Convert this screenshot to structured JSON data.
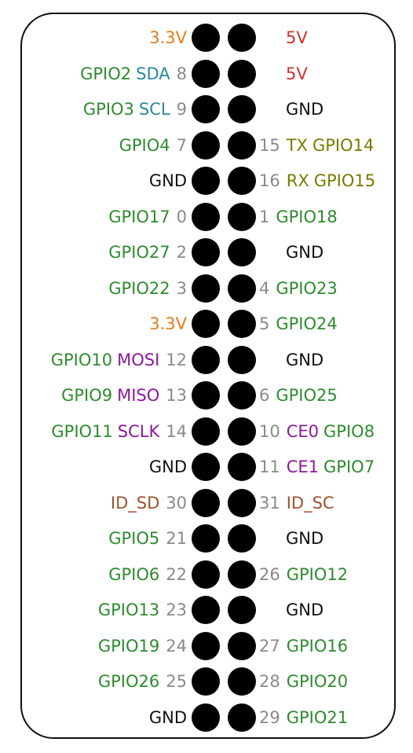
{
  "colors": {
    "power33": "#e57c1a",
    "power5": "#d32f2f",
    "gnd": "#111111",
    "gpio": "#2e8b2e",
    "i2c": "#2a8a9a",
    "uart": "#7a7a00",
    "spi": "#8b1a9c",
    "id": "#a0522d",
    "wpi": "#8a8a8a"
  },
  "rows": [
    {
      "left": {
        "name": "3.3V",
        "type": "power33",
        "func": "",
        "functype": "",
        "wpi": ""
      },
      "right": {
        "name": "5V",
        "type": "power5",
        "func": "",
        "functype": "",
        "wpi": ""
      }
    },
    {
      "left": {
        "name": "GPIO2",
        "type": "gpio",
        "func": "SDA",
        "functype": "i2c",
        "wpi": "8"
      },
      "right": {
        "name": "5V",
        "type": "power5",
        "func": "",
        "functype": "",
        "wpi": ""
      }
    },
    {
      "left": {
        "name": "GPIO3",
        "type": "gpio",
        "func": "SCL",
        "functype": "i2c",
        "wpi": "9"
      },
      "right": {
        "name": "GND",
        "type": "gnd",
        "func": "",
        "functype": "",
        "wpi": ""
      }
    },
    {
      "left": {
        "name": "GPIO4",
        "type": "gpio",
        "func": "",
        "functype": "",
        "wpi": "7"
      },
      "right": {
        "name": "GPIO14",
        "type": "uart",
        "func": "TX",
        "functype": "uart",
        "wpi": "15"
      }
    },
    {
      "left": {
        "name": "GND",
        "type": "gnd",
        "func": "",
        "functype": "",
        "wpi": ""
      },
      "right": {
        "name": "GPIO15",
        "type": "uart",
        "func": "RX",
        "functype": "uart",
        "wpi": "16"
      }
    },
    {
      "left": {
        "name": "GPIO17",
        "type": "gpio",
        "func": "",
        "functype": "",
        "wpi": "0"
      },
      "right": {
        "name": "GPIO18",
        "type": "gpio",
        "func": "",
        "functype": "",
        "wpi": "1"
      }
    },
    {
      "left": {
        "name": "GPIO27",
        "type": "gpio",
        "func": "",
        "functype": "",
        "wpi": "2"
      },
      "right": {
        "name": "GND",
        "type": "gnd",
        "func": "",
        "functype": "",
        "wpi": ""
      }
    },
    {
      "left": {
        "name": "GPIO22",
        "type": "gpio",
        "func": "",
        "functype": "",
        "wpi": "3"
      },
      "right": {
        "name": "GPIO23",
        "type": "gpio",
        "func": "",
        "functype": "",
        "wpi": "4"
      }
    },
    {
      "left": {
        "name": "3.3V",
        "type": "power33",
        "func": "",
        "functype": "",
        "wpi": ""
      },
      "right": {
        "name": "GPIO24",
        "type": "gpio",
        "func": "",
        "functype": "",
        "wpi": "5"
      }
    },
    {
      "left": {
        "name": "GPIO10",
        "type": "gpio",
        "func": "MOSI",
        "functype": "spi",
        "wpi": "12"
      },
      "right": {
        "name": "GND",
        "type": "gnd",
        "func": "",
        "functype": "",
        "wpi": ""
      }
    },
    {
      "left": {
        "name": "GPIO9",
        "type": "gpio",
        "func": "MISO",
        "functype": "spi",
        "wpi": "13"
      },
      "right": {
        "name": "GPIO25",
        "type": "gpio",
        "func": "",
        "functype": "",
        "wpi": "6"
      }
    },
    {
      "left": {
        "name": "GPIO11",
        "type": "gpio",
        "func": "SCLK",
        "functype": "spi",
        "wpi": "14"
      },
      "right": {
        "name": "GPIO8",
        "type": "gpio",
        "func": "CE0",
        "functype": "spi",
        "wpi": "10"
      }
    },
    {
      "left": {
        "name": "GND",
        "type": "gnd",
        "func": "",
        "functype": "",
        "wpi": ""
      },
      "right": {
        "name": "GPIO7",
        "type": "gpio",
        "func": "CE1",
        "functype": "spi",
        "wpi": "11"
      }
    },
    {
      "left": {
        "name": "ID_SD",
        "type": "id",
        "func": "",
        "functype": "",
        "wpi": "30"
      },
      "right": {
        "name": "ID_SC",
        "type": "id",
        "func": "",
        "functype": "",
        "wpi": "31"
      }
    },
    {
      "left": {
        "name": "GPIO5",
        "type": "gpio",
        "func": "",
        "functype": "",
        "wpi": "21"
      },
      "right": {
        "name": "GND",
        "type": "gnd",
        "func": "",
        "functype": "",
        "wpi": ""
      }
    },
    {
      "left": {
        "name": "GPIO6",
        "type": "gpio",
        "func": "",
        "functype": "",
        "wpi": "22"
      },
      "right": {
        "name": "GPIO12",
        "type": "gpio",
        "func": "",
        "functype": "",
        "wpi": "26"
      }
    },
    {
      "left": {
        "name": "GPIO13",
        "type": "gpio",
        "func": "",
        "functype": "",
        "wpi": "23"
      },
      "right": {
        "name": "GND",
        "type": "gnd",
        "func": "",
        "functype": "",
        "wpi": ""
      }
    },
    {
      "left": {
        "name": "GPIO19",
        "type": "gpio",
        "func": "",
        "functype": "",
        "wpi": "24"
      },
      "right": {
        "name": "GPIO16",
        "type": "gpio",
        "func": "",
        "functype": "",
        "wpi": "27"
      }
    },
    {
      "left": {
        "name": "GPIO26",
        "type": "gpio",
        "func": "",
        "functype": "",
        "wpi": "25"
      },
      "right": {
        "name": "GPIO20",
        "type": "gpio",
        "func": "",
        "functype": "",
        "wpi": "28"
      }
    },
    {
      "left": {
        "name": "GND",
        "type": "gnd",
        "func": "",
        "functype": "",
        "wpi": ""
      },
      "right": {
        "name": "GPIO21",
        "type": "gpio",
        "func": "",
        "functype": "",
        "wpi": "29"
      }
    }
  ]
}
